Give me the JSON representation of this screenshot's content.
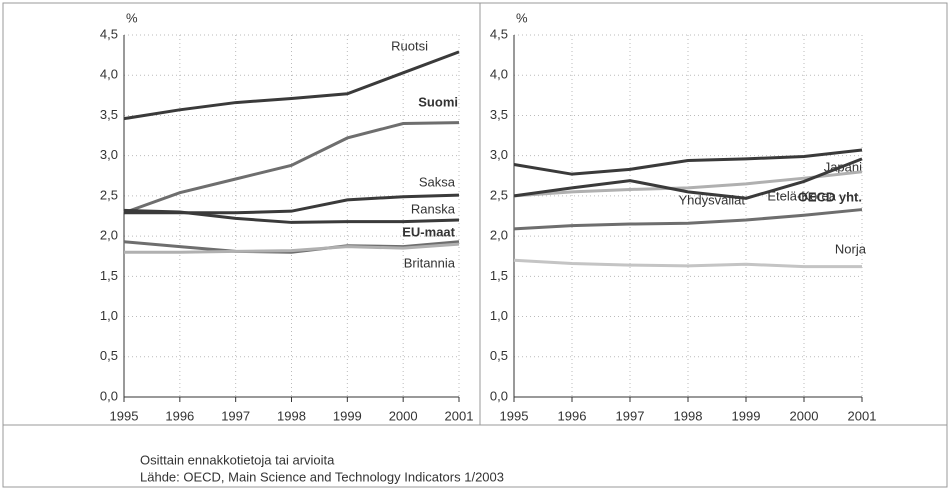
{
  "chart_data": [
    {
      "type": "line",
      "y_label": "%",
      "x": [
        1995,
        1996,
        1997,
        1998,
        1999,
        2000,
        2001
      ],
      "xlim": [
        1995,
        2001
      ],
      "xticks": [
        1995,
        1996,
        1997,
        1998,
        1999,
        2000,
        2001
      ],
      "ylim": [
        0,
        4.5
      ],
      "yticks": [
        {
          "value": 0,
          "label": "0,0"
        },
        {
          "value": 0.5,
          "label": "0,5"
        },
        {
          "value": 1,
          "label": "1,0"
        },
        {
          "value": 1.5,
          "label": "1,5"
        },
        {
          "value": 2,
          "label": "2,0"
        },
        {
          "value": 2.5,
          "label": "2,5"
        },
        {
          "value": 3,
          "label": "3,0"
        },
        {
          "value": 3.5,
          "label": "3,5"
        },
        {
          "value": 4,
          "label": "4,0"
        },
        {
          "value": 4.5,
          "label": "4,5"
        }
      ],
      "grid": true,
      "series": [
        {
          "name": "Ruotsi",
          "color": "#3a3a3a",
          "values": [
            3.46,
            3.57,
            3.66,
            3.71,
            3.77,
            4.03,
            4.29
          ]
        },
        {
          "name": "Suomi",
          "color": "#6e6e6e",
          "bold": true,
          "values": [
            2.29,
            2.54,
            2.71,
            2.88,
            3.22,
            3.4,
            3.41
          ]
        },
        {
          "name": "Saksa",
          "color": "#3a3a3a",
          "values": [
            2.29,
            2.29,
            2.29,
            2.31,
            2.45,
            2.49,
            2.51
          ]
        },
        {
          "name": "Ranska",
          "color": "#3a3a3a",
          "values": [
            2.32,
            2.3,
            2.22,
            2.17,
            2.18,
            2.18,
            2.2
          ]
        },
        {
          "name": "EU-maat",
          "color": "#6e6e6e",
          "bold": true,
          "values": [
            1.93,
            1.87,
            1.81,
            1.8,
            1.88,
            1.87,
            1.93
          ]
        },
        {
          "name": "Britannia",
          "color": "#b0b0b0",
          "values": [
            1.8,
            1.8,
            1.81,
            1.82,
            1.87,
            1.85,
            1.9
          ]
        }
      ]
    },
    {
      "type": "line",
      "y_label": "%",
      "x": [
        1995,
        1996,
        1997,
        1998,
        1999,
        2000,
        2001
      ],
      "xlim": [
        1995,
        2001
      ],
      "xticks": [
        1995,
        1996,
        1997,
        1998,
        1999,
        2000,
        2001
      ],
      "ylim": [
        0,
        4.5
      ],
      "yticks": [
        {
          "value": 0,
          "label": "0,0"
        },
        {
          "value": 0.5,
          "label": "0,5"
        },
        {
          "value": 1,
          "label": "1,0"
        },
        {
          "value": 1.5,
          "label": "1,5"
        },
        {
          "value": 2,
          "label": "2,0"
        },
        {
          "value": 2.5,
          "label": "2,5"
        },
        {
          "value": 3,
          "label": "3,0"
        },
        {
          "value": 3.5,
          "label": "3,5"
        },
        {
          "value": 4,
          "label": "4,0"
        },
        {
          "value": 4.5,
          "label": "4,5"
        }
      ],
      "grid": true,
      "series": [
        {
          "name": "Japani",
          "color": "#3a3a3a",
          "values": [
            2.89,
            2.77,
            2.83,
            2.94,
            2.96,
            2.99,
            3.07
          ]
        },
        {
          "name": "Yhdysvallat",
          "color": "#b0b0b0",
          "values": [
            2.5,
            2.55,
            2.58,
            2.6,
            2.65,
            2.72,
            2.8
          ]
        },
        {
          "name": "Etelä-Korea",
          "color": "#3a3a3a",
          "values": [
            2.5,
            2.6,
            2.69,
            2.55,
            2.47,
            2.68,
            2.96
          ]
        },
        {
          "name": "OECD yht.",
          "color": "#6e6e6e",
          "bold": true,
          "values": [
            2.09,
            2.13,
            2.15,
            2.16,
            2.2,
            2.26,
            2.33
          ]
        },
        {
          "name": "Norja",
          "color": "#c4c4c4",
          "values": [
            1.7,
            1.66,
            1.64,
            1.63,
            1.65,
            1.62,
            1.62
          ]
        }
      ]
    }
  ],
  "notes": [
    "Osittain ennakkotietoja tai arvioita",
    "Lähde: OECD, Main Science and Technology Indicators 1/2003"
  ]
}
